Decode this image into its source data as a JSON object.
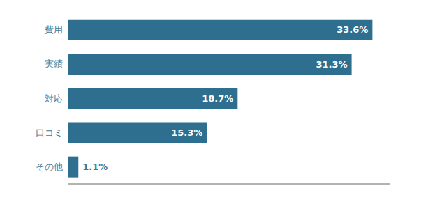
{
  "chart_data": {
    "type": "bar",
    "orientation": "horizontal",
    "categories": [
      "費用",
      "実績",
      "対応",
      "口コミ",
      "その他"
    ],
    "values": [
      33.6,
      31.3,
      18.7,
      15.3,
      1.1
    ],
    "value_labels": [
      "33.6%",
      "31.3%",
      "18.7%",
      "15.3%",
      "1.1%"
    ],
    "data_labels": true,
    "color": "#2e6e8e",
    "xlim": [
      0,
      35.5
    ],
    "tick_labels": "y",
    "grid": false
  }
}
